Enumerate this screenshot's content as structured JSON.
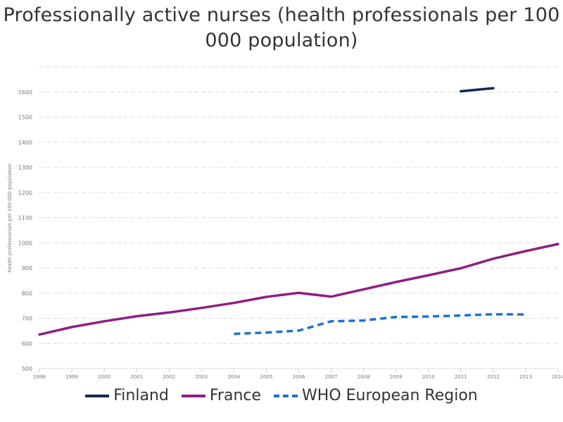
{
  "chart_data": {
    "type": "line",
    "title": "Professionally active nurses (health professionals per 100 000 population)",
    "ylabel": "health professionals per 100 000 population",
    "xlabel": "",
    "x": [
      1998,
      1999,
      2000,
      2001,
      2002,
      2003,
      2004,
      2005,
      2006,
      2007,
      2008,
      2009,
      2010,
      2011,
      2012,
      2013,
      2014
    ],
    "ylim": [
      500,
      1700
    ],
    "yticks": [
      500,
      600,
      700,
      800,
      900,
      1000,
      1100,
      1200,
      1300,
      1400,
      1500,
      1600
    ],
    "grid": true,
    "legend_position": "bottom",
    "series": [
      {
        "name": "Finland",
        "color": "#0f2a4f",
        "dash": "solid",
        "values": [
          null,
          null,
          null,
          null,
          null,
          null,
          null,
          null,
          null,
          null,
          null,
          null,
          null,
          1603,
          1615,
          null,
          null
        ]
      },
      {
        "name": "France",
        "color": "#8e1f7e",
        "dash": "solid",
        "values": [
          635,
          665,
          688,
          708,
          723,
          741,
          761,
          785,
          801,
          786,
          815,
          844,
          871,
          899,
          937,
          967,
          995
        ]
      },
      {
        "name": "WHO European Region",
        "color": "#1d6fd6",
        "dash": "dashed",
        "values": [
          null,
          null,
          null,
          null,
          null,
          null,
          638,
          643,
          651,
          688,
          691,
          705,
          707,
          711,
          716,
          715,
          null
        ]
      }
    ]
  }
}
